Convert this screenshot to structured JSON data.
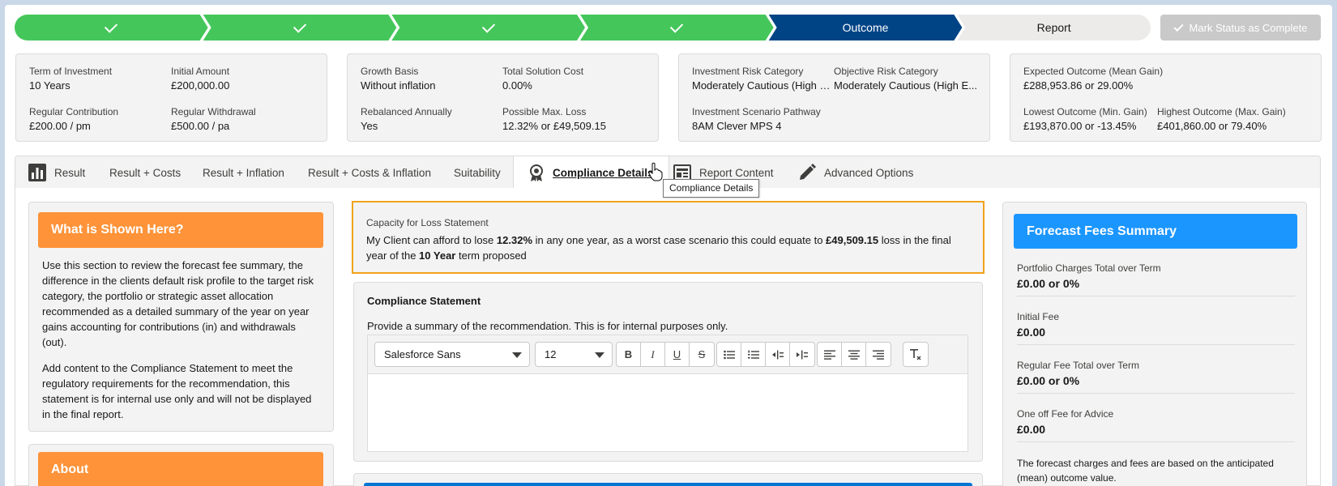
{
  "path": {
    "steps": [
      {
        "label": "",
        "state": "done"
      },
      {
        "label": "",
        "state": "done"
      },
      {
        "label": "",
        "state": "done"
      },
      {
        "label": "",
        "state": "done"
      },
      {
        "label": "Outcome",
        "state": "current"
      },
      {
        "label": "Report",
        "state": "todo"
      }
    ],
    "mark_complete_label": "Mark Status as Complete"
  },
  "summary": {
    "investment": {
      "term_label": "Term of Investment",
      "term_value": "10 Years",
      "initial_label": "Initial Amount",
      "initial_value": "£200,000.00",
      "contribution_label": "Regular Contribution",
      "contribution_value": "£200.00 / pm",
      "withdrawal_label": "Regular Withdrawal",
      "withdrawal_value": "£500.00 / pa"
    },
    "growth": {
      "basis_label": "Growth Basis",
      "basis_value": "Without inflation",
      "cost_label": "Total Solution Cost",
      "cost_value": "0.00%",
      "rebalanced_label": "Rebalanced Annually",
      "rebalanced_value": "Yes",
      "maxloss_label": "Possible Max. Loss",
      "maxloss_value": "12.32% or £49,509.15"
    },
    "risk": {
      "inv_risk_label": "Investment Risk Category",
      "inv_risk_value": "Moderately Cautious (High E...",
      "obj_risk_label": "Objective Risk Category",
      "obj_risk_value": "Moderately Cautious (High E...",
      "pathway_label": "Investment Scenario Pathway",
      "pathway_value": "8AM Clever MPS 4"
    },
    "outcome": {
      "expected_label": "Expected Outcome (Mean Gain)",
      "expected_value": "£288,953.86 or 29.00%",
      "lowest_label": "Lowest Outcome (Min. Gain)",
      "lowest_value": "£193,870.00 or -13.45%",
      "highest_label": "Highest Outcome (Max. Gain)",
      "highest_value": "£401,860.00 or 79.40%"
    }
  },
  "tabs": {
    "result": "Result",
    "result_costs": "Result + Costs",
    "result_inflation": "Result + Inflation",
    "result_costs_inflation": "Result + Costs & Inflation",
    "suitability": "Suitability",
    "compliance": "Compliance Details",
    "report_content": "Report Content",
    "advanced": "Advanced Options",
    "tooltip": "Compliance Details"
  },
  "left_panel": {
    "heading": "What is Shown Here?",
    "para1": "Use this section to review the forecast fee summary, the difference in the clients default risk profile to the target risk category, the portfolio or strategic asset allocation recommended as a detailed summary of the year on year gains accounting for contributions (in) and withdrawals (out).",
    "para2": "Add content to the Compliance Statement to meet the regulatory requirements for the recommendation, this statement is for internal use only and will not be displayed in the final report.",
    "about_heading": "About"
  },
  "capacity": {
    "title": "Capacity for Loss Statement",
    "t1": "My Client can afford to lose ",
    "pct": "12.32%",
    "t2": " in any one year, as a worst case scenario this could equate to ",
    "amount": "£49,509.15",
    "t3": " loss in the final year of the ",
    "term": "10 Year",
    "t4": " term proposed"
  },
  "compliance": {
    "heading": "Compliance Statement",
    "help": "Provide a summary of the recommendation. This is for internal purposes only.",
    "font_value": "Salesforce Sans",
    "size_value": "12"
  },
  "fees": {
    "heading": "Forecast Fees Summary",
    "items": [
      {
        "label": "Portfolio Charges Total over Term",
        "value": "£0.00 or 0%"
      },
      {
        "label": "Initial Fee",
        "value": "£0.00"
      },
      {
        "label": "Regular Fee Total over Term",
        "value": "£0.00 or 0%"
      },
      {
        "label": "One off Fee for Advice",
        "value": "£0.00"
      }
    ],
    "note": "The forecast charges and fees are based on the anticipated (mean) outcome value."
  }
}
